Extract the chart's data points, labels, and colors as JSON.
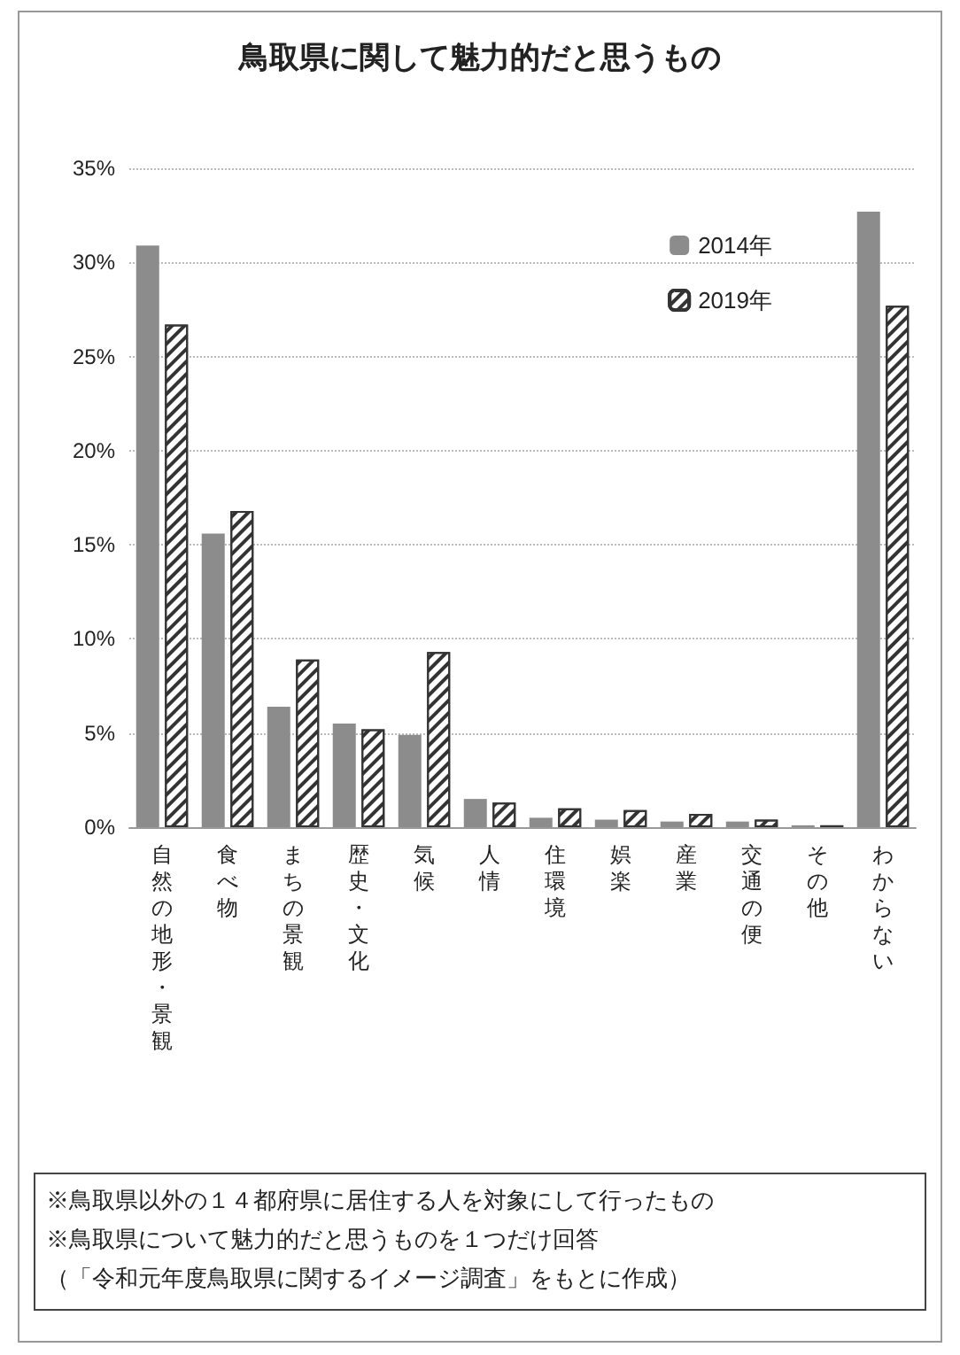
{
  "chart_data": {
    "type": "bar",
    "title": "鳥取県に関して魅力的だと思うもの",
    "categories": [
      "自然の地形・景観",
      "食べ物",
      "まちの景観",
      "歴史・文化",
      "気候",
      "人情",
      "住環境",
      "娯楽",
      "産業",
      "交通の便",
      "その他",
      "わからない"
    ],
    "series": [
      {
        "name": "2014年",
        "color": "#8c8c8c",
        "values": [
          30.9,
          15.6,
          6.4,
          5.5,
          4.9,
          1.5,
          0.5,
          0.4,
          0.3,
          0.3,
          0.1,
          32.7
        ]
      },
      {
        "name": "2019年",
        "color": "#333333",
        "values": [
          26.7,
          16.8,
          8.9,
          5.2,
          9.3,
          1.3,
          1.0,
          0.9,
          0.7,
          0.4,
          0.1,
          27.7
        ]
      }
    ],
    "ylim": [
      0,
      35
    ],
    "yticks": [
      {
        "value": 0,
        "label": "0%"
      },
      {
        "value": 5,
        "label": "5%"
      },
      {
        "value": 10,
        "label": "10%"
      },
      {
        "value": 15,
        "label": "15%"
      },
      {
        "value": 20,
        "label": "20%"
      },
      {
        "value": 25,
        "label": "25%"
      },
      {
        "value": 30,
        "label": "30%"
      },
      {
        "value": 35,
        "label": "35%"
      }
    ],
    "grid": "y",
    "legend": "top right",
    "annotations": [
      "※鳥取県以外の１４都府県に居住する人を対象にして行ったもの",
      "※鳥取県について魅力的だと思うものを１つだけ回答",
      "（「令和元年度鳥取県に関するイメージ調査」をもとに作成）"
    ]
  }
}
